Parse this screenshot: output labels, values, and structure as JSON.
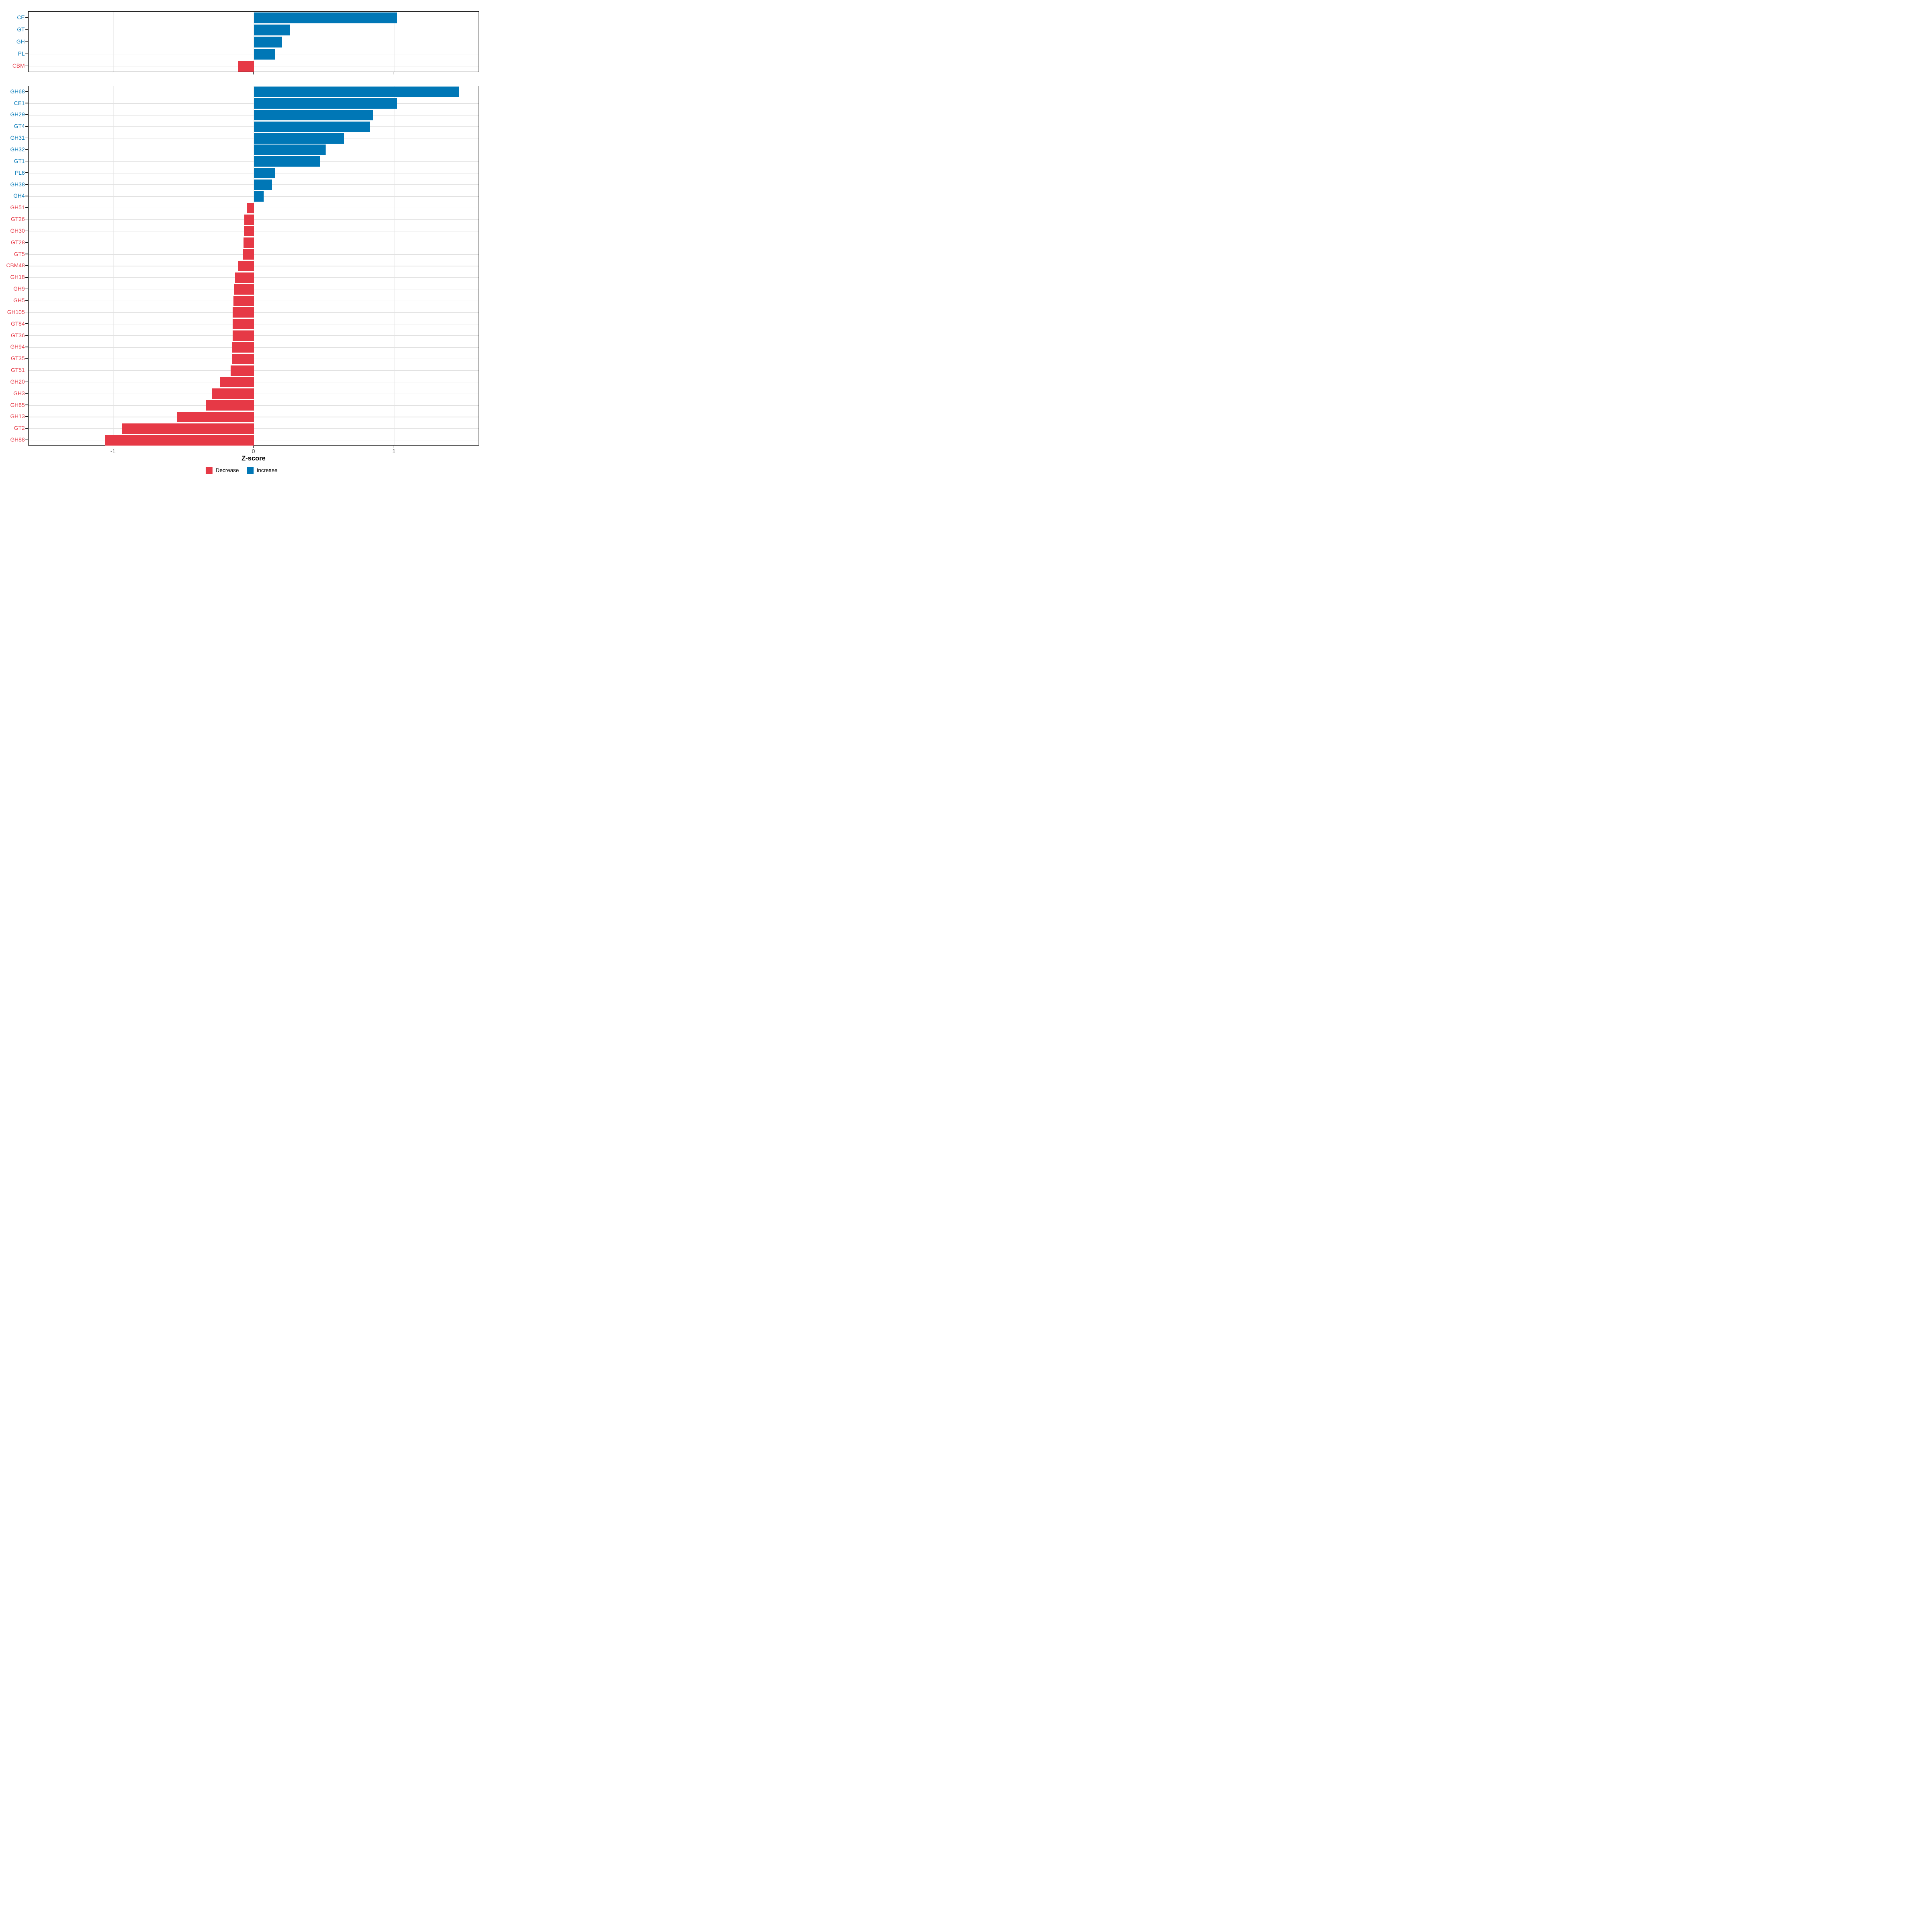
{
  "figure": {
    "background": "#ffffff"
  },
  "axis": {
    "xlabel": "Z-score",
    "ticks": [
      -1,
      0,
      1
    ],
    "tick_labels": [
      "-1",
      "0",
      "1"
    ],
    "xlim": [
      -1.605,
      1.607
    ]
  },
  "legend": {
    "items": [
      {
        "key": "decrease",
        "label": "Decrease",
        "color": "#e63946"
      },
      {
        "key": "increase",
        "label": "Increase",
        "color": "#0077b6"
      }
    ]
  },
  "colors": {
    "increase": "#0077b6",
    "decrease": "#e63946",
    "gridline": "#e2e2e2",
    "panel_border": "#161616",
    "tick": "#161616",
    "axis_tick_label": "#4d4d4d",
    "axis_title": "#000000",
    "background": "#ffffff"
  },
  "chart_data": [
    {
      "id": "cazyme-class-panel",
      "type": "bar",
      "orientation": "horizontal",
      "grid": true,
      "legend_position": "bottom",
      "xlabel": "Z-score",
      "xlim": [
        -1.605,
        1.607
      ],
      "categories": [
        "CE",
        "GT",
        "GH",
        "PL",
        "CBM"
      ],
      "values": [
        1.02,
        0.26,
        0.2,
        0.15,
        -0.11
      ]
    },
    {
      "id": "cazyme-family-panel",
      "type": "bar",
      "orientation": "horizontal",
      "grid": true,
      "legend_position": "bottom",
      "xlabel": "Z-score",
      "xlim": [
        -1.605,
        1.607
      ],
      "categories": [
        "GH68",
        "CE1",
        "GH29",
        "GT4",
        "GH31",
        "GH32",
        "GT1",
        "PL8",
        "GH38",
        "GH4",
        "GH51",
        "GT26",
        "GH30",
        "GT28",
        "GT5",
        "CBM48",
        "GH18",
        "GH9",
        "GH5",
        "GH105",
        "GT84",
        "GT36",
        "GH94",
        "GT35",
        "GT51",
        "GH20",
        "GH3",
        "GH65",
        "GH13",
        "GT2",
        "GH88"
      ],
      "values": [
        1.46,
        1.02,
        0.85,
        0.83,
        0.64,
        0.51,
        0.47,
        0.15,
        0.13,
        0.07,
        -0.05,
        -0.068,
        -0.07,
        -0.072,
        -0.078,
        -0.114,
        -0.134,
        -0.143,
        -0.145,
        -0.15,
        -0.151,
        -0.152,
        -0.153,
        -0.156,
        -0.166,
        -0.24,
        -0.3,
        -0.34,
        -0.55,
        -0.94,
        -1.06
      ]
    }
  ]
}
